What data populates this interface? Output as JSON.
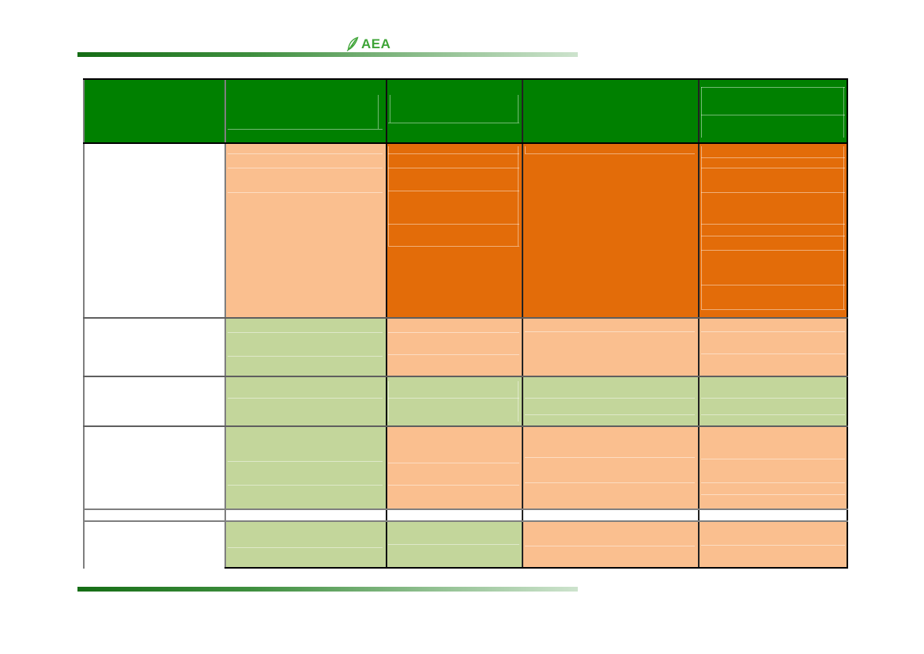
{
  "page": {
    "background": "#ffffff"
  },
  "logo": {
    "text": "AEA",
    "color": "#3ea437",
    "icon": "leaf-icon"
  },
  "decor": {
    "bar_gradient_start": "#156d15",
    "bar_gradient_end": "#cde3cd"
  },
  "table": {
    "kind": "status-matrix (all cell text removed; colors encode status)",
    "palette": {
      "header": "#008000",
      "dark": "#e36c09",
      "peach": "#fabf8f",
      "green": "#c3d69b",
      "white": "#ffffff"
    },
    "rows": [
      {
        "name": "header",
        "cells": [
          {
            "color": "header"
          },
          {
            "color": "header",
            "hlines": [
              78
            ],
            "vlines": [
              [
                95,
                25,
                78
              ]
            ]
          },
          {
            "color": "header",
            "hlines": [
              68
            ],
            "vlines": [
              [
                3,
                25,
                68
              ],
              [
                97,
                25,
                68
              ]
            ]
          },
          {
            "color": "header"
          },
          {
            "color": "header",
            "hlines": [
              13,
              56
            ],
            "vlines": [
              [
                2,
                13,
                92
              ],
              [
                97,
                13,
                92
              ]
            ]
          }
        ]
      },
      {
        "name": "r1",
        "cells": [
          {
            "color": "white"
          },
          {
            "color": "peach",
            "hlines": [
              6,
              14,
              28
            ]
          },
          {
            "color": "dark",
            "hlines": [
              6,
              14,
              27,
              46,
              59
            ],
            "vlines": [
              [
                2,
                2,
                59
              ],
              [
                97,
                2,
                59
              ]
            ]
          },
          {
            "color": "dark",
            "hlines": [
              6
            ],
            "vlines": [
              [
                2,
                2,
                6
              ]
            ]
          },
          {
            "color": "dark",
            "hlines": [
              8,
              14,
              28,
              46,
              53,
              61,
              81,
              95
            ],
            "vlines": [
              [
                2,
                2,
                95
              ],
              [
                97,
                2,
                95
              ]
            ]
          }
        ]
      },
      {
        "name": "r2",
        "cells": [
          {
            "color": "white"
          },
          {
            "color": "green",
            "hlines": [
              24,
              65
            ]
          },
          {
            "color": "peach",
            "hlines": [
              24,
              62
            ]
          },
          {
            "color": "peach",
            "hlines": [
              23
            ]
          },
          {
            "color": "peach",
            "hlines": [
              23,
              61
            ]
          }
        ]
      },
      {
        "name": "r3",
        "cells": [
          {
            "color": "white"
          },
          {
            "color": "green",
            "hlines": [
              43
            ]
          },
          {
            "color": "green",
            "hlines": [
              43
            ],
            "vlines": [
              [
                2,
                10,
                90
              ],
              [
                97,
                10,
                90
              ]
            ]
          },
          {
            "color": "green",
            "hlines": [
              43,
              76
            ]
          },
          {
            "color": "green",
            "hlines": [
              43,
              76
            ]
          }
        ]
      },
      {
        "name": "r4",
        "cells": [
          {
            "color": "white"
          },
          {
            "color": "green",
            "hlines": [
              42,
              70
            ]
          },
          {
            "color": "peach",
            "hlines": [
              44,
              70
            ]
          },
          {
            "color": "peach",
            "hlines": [
              37,
              68
            ]
          },
          {
            "color": "peach",
            "hlines": [
              39,
              68,
              82
            ]
          }
        ]
      },
      {
        "name": "sep",
        "cells": [
          {
            "color": "white"
          },
          {
            "color": "white"
          },
          {
            "color": "white"
          },
          {
            "color": "white"
          },
          {
            "color": "white"
          }
        ]
      },
      {
        "name": "r5",
        "cells": [
          {
            "color": "white"
          },
          {
            "color": "green",
            "hlines": [
              55
            ]
          },
          {
            "color": "green",
            "hlines": [
              48
            ]
          },
          {
            "color": "peach",
            "hlines": [
              52
            ]
          },
          {
            "color": "peach",
            "hlines": [
              50
            ]
          }
        ]
      }
    ]
  }
}
